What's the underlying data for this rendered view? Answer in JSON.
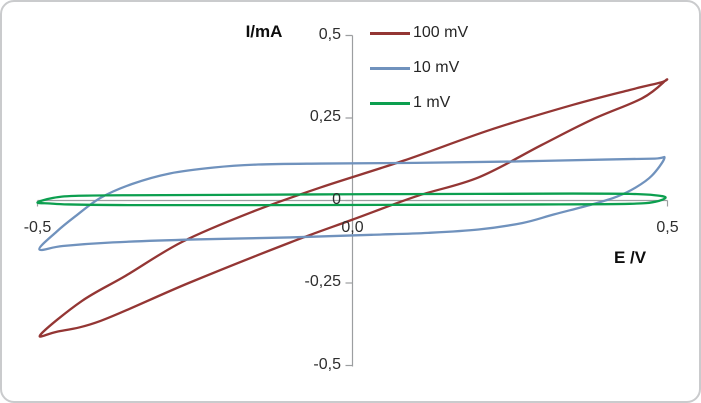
{
  "frame": {
    "background": "#ffffff",
    "border_color": "#cacbcd"
  },
  "chart_data": {
    "type": "line",
    "subtype": "cyclic-voltammogram",
    "title": "",
    "grid": false,
    "legend_position": "top-center",
    "axis_color": "#9c9ea0",
    "text_color": "#2e2e2e",
    "decimal_separator": ",",
    "x_axis": {
      "label": "E /V",
      "min": -0.5,
      "max": 0.5,
      "ticks": [
        {
          "value": -0.5,
          "label": "-0,5"
        },
        {
          "value": 0.0,
          "label": "0,0"
        },
        {
          "value": 0.5,
          "label": "0,5"
        }
      ]
    },
    "y_axis": {
      "label": "I/mA",
      "min": -0.5,
      "max": 0.5,
      "ticks": [
        {
          "value": 0.5,
          "label": "0,5"
        },
        {
          "value": 0.25,
          "label": "0,25"
        },
        {
          "value": 0.0,
          "label": "0"
        },
        {
          "value": -0.25,
          "label": "-0,25"
        },
        {
          "value": -0.5,
          "label": "-0,5"
        }
      ]
    },
    "series": [
      {
        "name": "100 mV",
        "color": "#943634",
        "closed_loop": true,
        "points": [
          [
            -0.495,
            -0.406
          ],
          [
            -0.43,
            -0.305
          ],
          [
            -0.36,
            -0.228
          ],
          [
            -0.27,
            -0.125
          ],
          [
            -0.16,
            -0.035
          ],
          [
            -0.05,
            0.04
          ],
          [
            0.08,
            0.12
          ],
          [
            0.22,
            0.215
          ],
          [
            0.35,
            0.29
          ],
          [
            0.44,
            0.335
          ],
          [
            0.49,
            0.358
          ],
          [
            0.497,
            0.364
          ],
          [
            0.46,
            0.31
          ],
          [
            0.38,
            0.245
          ],
          [
            0.3,
            0.168
          ],
          [
            0.2,
            0.07
          ],
          [
            0.1,
            0.012
          ],
          [
            0.0,
            -0.058
          ],
          [
            -0.1,
            -0.128
          ],
          [
            -0.26,
            -0.25
          ],
          [
            -0.4,
            -0.365
          ],
          [
            -0.47,
            -0.398
          ]
        ]
      },
      {
        "name": "10 mV",
        "color": "#7092bd",
        "closed_loop": true,
        "points": [
          [
            -0.497,
            -0.148
          ],
          [
            -0.47,
            -0.095
          ],
          [
            -0.44,
            -0.048
          ],
          [
            -0.4,
            0.008
          ],
          [
            -0.35,
            0.05
          ],
          [
            -0.29,
            0.082
          ],
          [
            -0.22,
            0.1
          ],
          [
            -0.15,
            0.109
          ],
          [
            -0.05,
            0.112
          ],
          [
            0.1,
            0.114
          ],
          [
            0.25,
            0.118
          ],
          [
            0.4,
            0.124
          ],
          [
            0.48,
            0.127
          ],
          [
            0.495,
            0.128
          ],
          [
            0.475,
            0.075
          ],
          [
            0.45,
            0.04
          ],
          [
            0.42,
            0.012
          ],
          [
            0.38,
            -0.012
          ],
          [
            0.32,
            -0.042
          ],
          [
            0.27,
            -0.068
          ],
          [
            0.2,
            -0.088
          ],
          [
            0.12,
            -0.098
          ],
          [
            0.03,
            -0.104
          ],
          [
            -0.1,
            -0.112
          ],
          [
            -0.25,
            -0.118
          ],
          [
            -0.38,
            -0.127
          ],
          [
            -0.46,
            -0.138
          ]
        ]
      },
      {
        "name": "1 mV",
        "color": "#0c9f4f",
        "closed_loop": true,
        "points": [
          [
            -0.5,
            -0.006
          ],
          [
            -0.475,
            0.008
          ],
          [
            -0.44,
            0.014
          ],
          [
            -0.35,
            0.016
          ],
          [
            -0.2,
            0.017
          ],
          [
            0.0,
            0.019
          ],
          [
            0.2,
            0.02
          ],
          [
            0.35,
            0.021
          ],
          [
            0.44,
            0.02
          ],
          [
            0.48,
            0.016
          ],
          [
            0.497,
            0.009
          ],
          [
            0.48,
            -0.004
          ],
          [
            0.44,
            -0.01
          ],
          [
            0.3,
            -0.012
          ],
          [
            0.1,
            -0.013
          ],
          [
            -0.15,
            -0.014
          ],
          [
            -0.35,
            -0.014
          ],
          [
            -0.45,
            -0.012
          ],
          [
            -0.48,
            -0.009
          ]
        ]
      }
    ]
  }
}
